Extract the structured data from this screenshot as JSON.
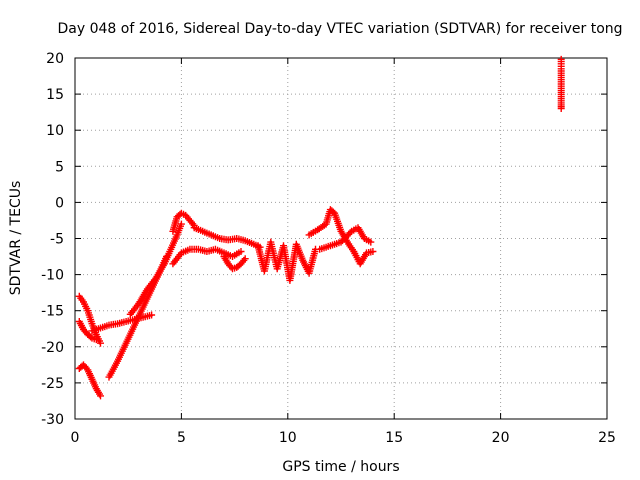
{
  "chart_data": {
    "type": "scatter",
    "title": "Day 048 of 2016, Sidereal Day-to-day VTEC variation (SDTVAR) for receiver tong",
    "xlabel": "GPS time / hours",
    "ylabel": "SDTVAR / TECUs",
    "xlim": [
      0,
      25
    ],
    "ylim": [
      -30,
      20
    ],
    "xticks": [
      0,
      5,
      10,
      15,
      20,
      25
    ],
    "yticks": [
      -30,
      -25,
      -20,
      -15,
      -10,
      -5,
      0,
      5,
      10,
      15,
      20
    ],
    "grid": true,
    "marker": "plus",
    "color": "#ff0000",
    "series": [
      {
        "name": "SDTVAR",
        "segments": [
          {
            "x": [
              0.2,
              0.4,
              0.6,
              0.8,
              1.0,
              1.2
            ],
            "y": [
              -13.0,
              -13.8,
              -15.0,
              -16.8,
              -18.3,
              -19.5
            ]
          },
          {
            "x": [
              0.2,
              0.4,
              0.6,
              0.8,
              1.0
            ],
            "y": [
              -16.5,
              -17.6,
              -18.3,
              -18.8,
              -19.0
            ]
          },
          {
            "x": [
              0.2,
              0.4,
              0.6,
              0.8,
              1.0,
              1.2
            ],
            "y": [
              -23.0,
              -22.5,
              -23.2,
              -24.5,
              -25.8,
              -26.8
            ]
          },
          {
            "x": [
              0.8,
              1.2,
              1.6,
              2.0,
              2.4,
              2.8,
              3.2,
              3.6
            ],
            "y": [
              -17.8,
              -17.4,
              -17.0,
              -16.8,
              -16.5,
              -16.2,
              -15.9,
              -15.6
            ]
          },
          {
            "x": [
              1.6,
              2.0,
              2.4,
              2.8,
              3.2,
              3.6,
              4.0,
              4.3
            ],
            "y": [
              -24.2,
              -22.0,
              -19.5,
              -17.0,
              -14.5,
              -12.0,
              -9.5,
              -7.5
            ]
          },
          {
            "x": [
              2.6,
              3.0,
              3.4,
              3.8,
              4.2,
              4.5,
              4.8,
              5.0
            ],
            "y": [
              -15.5,
              -14.0,
              -12.0,
              -10.5,
              -8.5,
              -6.5,
              -4.5,
              -3.0
            ]
          },
          {
            "x": [
              4.6,
              4.8,
              5.0,
              5.2,
              5.4,
              5.6
            ],
            "y": [
              -4.0,
              -2.0,
              -1.5,
              -1.8,
              -2.5,
              -3.2
            ]
          },
          {
            "x": [
              5.6,
              6.0,
              6.4,
              6.8,
              7.2,
              7.6,
              8.0,
              8.4,
              8.7
            ],
            "y": [
              -3.5,
              -4.0,
              -4.5,
              -5.0,
              -5.2,
              -5.0,
              -5.3,
              -5.8,
              -6.2
            ]
          },
          {
            "x": [
              4.6,
              5.0,
              5.4,
              5.8,
              6.2,
              6.6,
              7.0,
              7.4,
              7.8
            ],
            "y": [
              -8.5,
              -7.0,
              -6.5,
              -6.5,
              -6.8,
              -6.5,
              -7.0,
              -7.5,
              -6.8
            ]
          },
          {
            "x": [
              7.0,
              7.2,
              7.4,
              7.6,
              7.8,
              8.0
            ],
            "y": [
              -7.5,
              -8.5,
              -9.2,
              -9.0,
              -8.5,
              -7.8
            ]
          },
          {
            "x": [
              8.6,
              8.9,
              9.2,
              9.5,
              9.8,
              10.1,
              10.4,
              10.7,
              11.0,
              11.3
            ],
            "y": [
              -6.0,
              -9.5,
              -5.5,
              -9.2,
              -6.0,
              -10.8,
              -5.8,
              -8.0,
              -9.8,
              -6.5
            ]
          },
          {
            "x": [
              11.0,
              11.4,
              11.8,
              12.0,
              12.2,
              12.5,
              12.8,
              13.1,
              13.4,
              13.7,
              14.0
            ],
            "y": [
              -4.5,
              -3.8,
              -3.0,
              -1.0,
              -1.5,
              -4.0,
              -5.5,
              -6.8,
              -8.5,
              -7.0,
              -6.8
            ]
          },
          {
            "x": [
              11.5,
              12.0,
              12.5,
              13.0,
              13.3,
              13.6,
              13.9
            ],
            "y": [
              -6.5,
              -6.0,
              -5.5,
              -4.0,
              -3.5,
              -5.0,
              -5.5
            ]
          },
          {
            "x": [
              22.85,
              22.85,
              22.85,
              22.85,
              22.85,
              22.85
            ],
            "y": [
              19.8,
              19.2,
              18.5,
              15.5,
              13.5,
              13.0
            ]
          }
        ]
      }
    ]
  }
}
